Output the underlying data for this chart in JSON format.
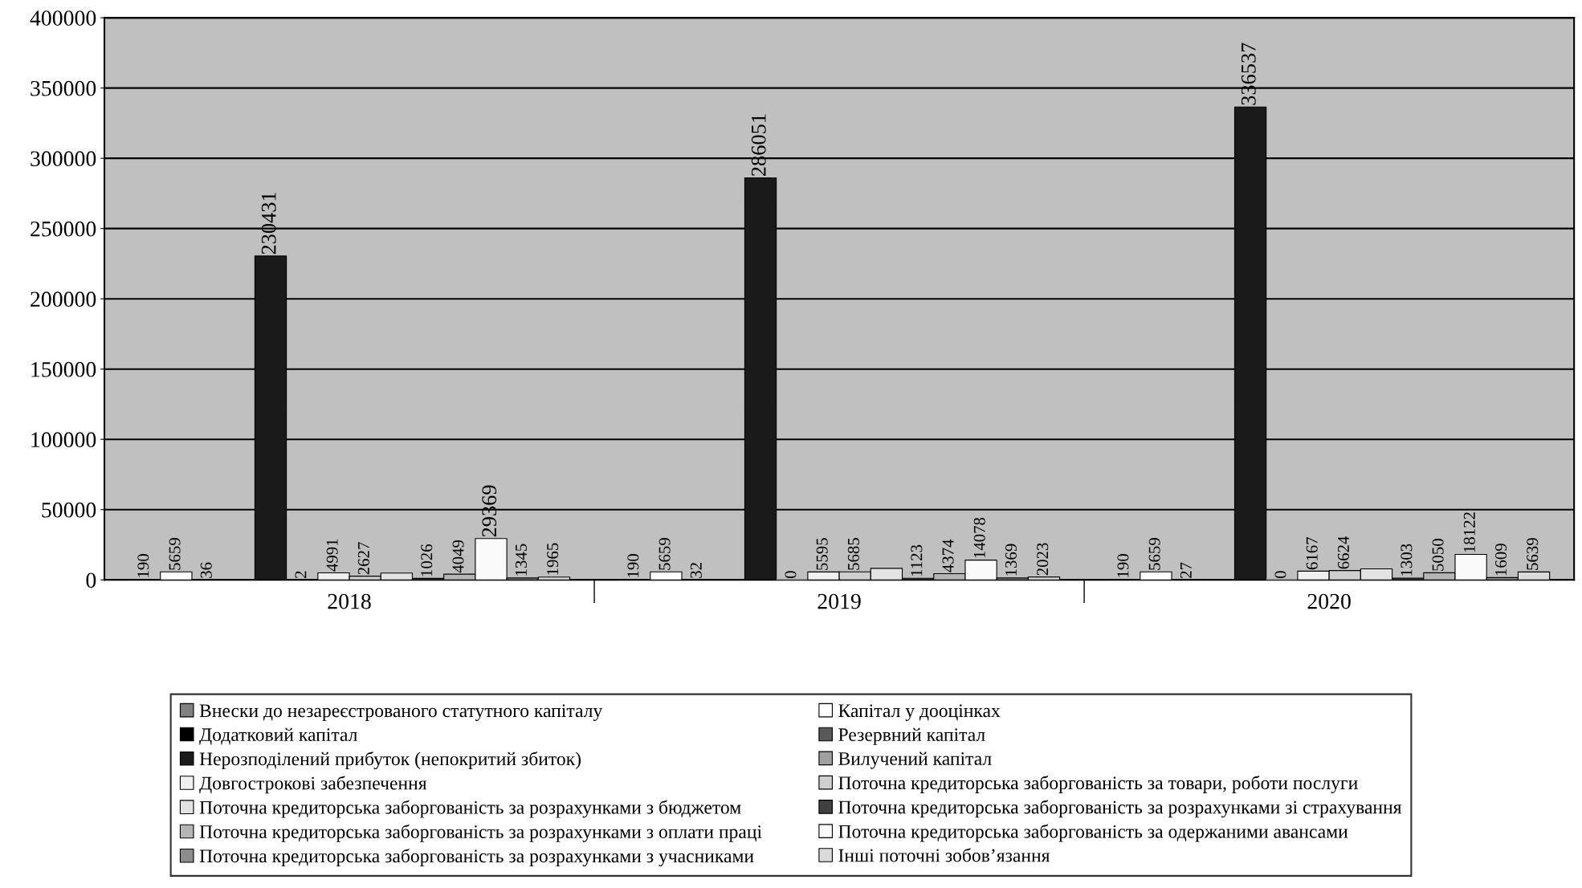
{
  "chart_data": {
    "type": "bar",
    "categories": [
      "2018",
      "2019",
      "2020"
    ],
    "ylim": [
      0,
      400000
    ],
    "yticks": [
      0,
      50000,
      100000,
      150000,
      200000,
      250000,
      300000,
      350000,
      400000
    ],
    "grid": "y",
    "legend": "bottom",
    "series": [
      {
        "name": "Внески до незареєстрованого статутного капіталу",
        "color": "#808080",
        "values": [
          190,
          190,
          190
        ],
        "value_labels": [
          "190",
          "190",
          "190"
        ]
      },
      {
        "name": "Капітал у дооцінках",
        "color": "#ffffff",
        "values": [
          5659,
          5659,
          5659
        ],
        "value_labels": [
          "5659",
          "5659",
          "5659"
        ]
      },
      {
        "name": "Додатковий капітал",
        "color": "#000000",
        "values": [
          36,
          32,
          27
        ],
        "value_labels": [
          "36",
          "32",
          "27"
        ]
      },
      {
        "name": "Резервний капітал",
        "color": "#595959",
        "values": [
          null,
          null,
          null
        ],
        "value_labels": [
          null,
          null,
          null
        ]
      },
      {
        "name": "Нерозподілений прибуток (непокритий збиток)",
        "color": "#1a1a1a",
        "values": [
          230431,
          286051,
          336537
        ],
        "value_labels": [
          "230431",
          "286051",
          "336537"
        ]
      },
      {
        "name": "Вилучений капітал",
        "color": "#a0a0a0",
        "values": [
          2,
          0,
          0
        ],
        "value_labels": [
          "2",
          "0",
          "0"
        ]
      },
      {
        "name": "Довгострокові забезпечення",
        "color": "#f0f0f0",
        "values": [
          4991,
          5595,
          6167
        ],
        "value_labels": [
          "4991",
          "5595",
          "6167"
        ]
      },
      {
        "name": "Поточна кредиторська заборгованість за товари, роботи послуги",
        "color": "#cfcfcf",
        "values": [
          2627,
          5685,
          6624
        ],
        "value_labels": [
          "2627",
          "5685",
          "6624"
        ]
      },
      {
        "name": "Поточна кредиторська заборгованість за розрахунками з бюджетом",
        "color": "#e3e3e3",
        "values": [
          4800,
          8200,
          7800
        ],
        "value_labels": [
          null,
          null,
          null
        ]
      },
      {
        "name": "Поточна кредиторська заборгованість за розрахунками зі страхування",
        "color": "#404040",
        "values": [
          1026,
          1123,
          1303
        ],
        "value_labels": [
          "1026",
          "1123",
          "1303"
        ]
      },
      {
        "name": "Поточна кредиторська заборгованість за розрахунками з оплати праці",
        "color": "#b5b5b5",
        "values": [
          4049,
          4374,
          5050
        ],
        "value_labels": [
          "4049",
          "4374",
          "5050"
        ]
      },
      {
        "name": "Поточна кредиторська заборгованість за одержаними авансами",
        "color": "#fafafa",
        "values": [
          29369,
          14078,
          18122
        ],
        "value_labels": [
          "29369",
          "14078",
          "18122"
        ]
      },
      {
        "name": "Поточна кредиторська заборгованість за розрахунками з учасниками",
        "color": "#8c8c8c",
        "values": [
          1345,
          1369,
          1609
        ],
        "value_labels": [
          "1345",
          "1369",
          "1609"
        ]
      },
      {
        "name": "Інші поточні зобов’язання",
        "color": "#dadada",
        "values": [
          1965,
          2023,
          5639
        ],
        "value_labels": [
          "1965",
          "2023",
          "5639"
        ]
      }
    ]
  }
}
